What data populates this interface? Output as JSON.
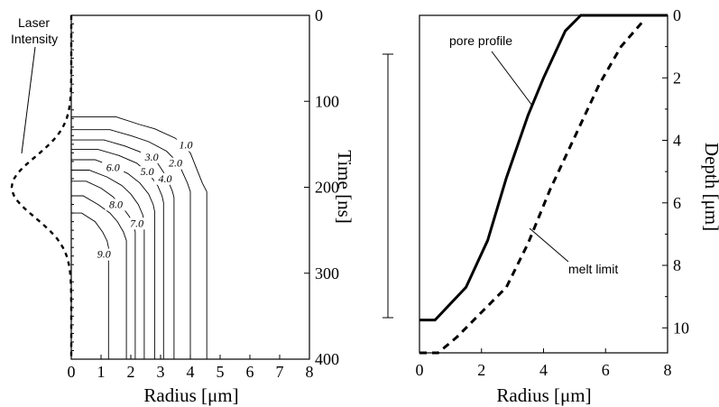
{
  "chart_data": [
    {
      "type": "contour",
      "xlabel": "Radius [μm]",
      "ylabel": "Time [ns]",
      "x_ticks": [
        "0",
        "1",
        "2",
        "3",
        "4",
        "5",
        "6",
        "7",
        "8"
      ],
      "y_ticks": [
        "0",
        "100",
        "200",
        "300",
        "400"
      ],
      "xlim": [
        0,
        8
      ],
      "ylim": [
        0,
        400
      ],
      "y_axis_side": "right",
      "y_inverted": true,
      "contours": [
        {
          "label": "1.0",
          "points": [
            [
              0,
              118
            ],
            [
              1.5,
              118
            ],
            [
              2.3,
              127
            ],
            [
              2.8,
              132
            ],
            [
              3.5,
              143
            ],
            [
              4.0,
              160
            ],
            [
              4.4,
              195
            ],
            [
              4.55,
              205
            ],
            [
              4.55,
              400
            ]
          ]
        },
        {
          "label": "2.0",
          "points": [
            [
              0,
              133
            ],
            [
              1.3,
              133
            ],
            [
              2.0,
              140
            ],
            [
              2.6,
              147
            ],
            [
              3.2,
              158
            ],
            [
              3.6,
              172
            ],
            [
              3.9,
              195
            ],
            [
              4.0,
              205
            ],
            [
              4.0,
              400
            ]
          ]
        },
        {
          "label": "3.0",
          "points": [
            [
              0,
              145
            ],
            [
              1.1,
              145
            ],
            [
              1.8,
              152
            ],
            [
              2.4,
              160
            ],
            [
              2.9,
              172
            ],
            [
              3.2,
              188
            ],
            [
              3.4,
              205
            ],
            [
              3.45,
              212
            ],
            [
              3.45,
              400
            ]
          ]
        },
        {
          "label": "4.0",
          "points": [
            [
              0,
              156
            ],
            [
              0.9,
              156
            ],
            [
              1.6,
              163
            ],
            [
              2.2,
              172
            ],
            [
              2.6,
              184
            ],
            [
              2.9,
              198
            ],
            [
              3.05,
              210
            ],
            [
              3.1,
              218
            ],
            [
              3.1,
              400
            ]
          ]
        },
        {
          "label": "5.0",
          "points": [
            [
              0,
              168
            ],
            [
              0.8,
              168
            ],
            [
              1.4,
              176
            ],
            [
              1.9,
              184
            ],
            [
              2.3,
              195
            ],
            [
              2.6,
              208
            ],
            [
              2.75,
              220
            ],
            [
              2.8,
              228
            ],
            [
              2.8,
              400
            ]
          ]
        },
        {
          "label": "6.0",
          "points": [
            [
              0,
              180
            ],
            [
              0.6,
              180
            ],
            [
              1.2,
              188
            ],
            [
              1.7,
              198
            ],
            [
              2.0,
              208
            ],
            [
              2.25,
              220
            ],
            [
              2.4,
              232
            ],
            [
              2.45,
              240
            ],
            [
              2.45,
              400
            ]
          ]
        },
        {
          "label": "7.0",
          "points": [
            [
              0,
              193
            ],
            [
              0.5,
              193
            ],
            [
              1.0,
              201
            ],
            [
              1.4,
              211
            ],
            [
              1.7,
              222
            ],
            [
              1.95,
              234
            ],
            [
              2.1,
              244
            ],
            [
              2.15,
              252
            ],
            [
              2.15,
              400
            ]
          ]
        },
        {
          "label": "8.0",
          "points": [
            [
              0,
              210
            ],
            [
              0.4,
              210
            ],
            [
              0.9,
              220
            ],
            [
              1.3,
              230
            ],
            [
              1.55,
              240
            ],
            [
              1.75,
              252
            ],
            [
              1.85,
              262
            ],
            [
              1.85,
              400
            ]
          ]
        },
        {
          "label": "9.0",
          "points": [
            [
              0,
              230
            ],
            [
              0.35,
              230
            ],
            [
              0.8,
              240
            ],
            [
              1.05,
              252
            ],
            [
              1.2,
              262
            ],
            [
              1.25,
              270
            ],
            [
              1.25,
              400
            ]
          ]
        }
      ],
      "annotations": [
        "Laser\nIntensity"
      ],
      "laser_intensity_profile": {
        "peak_time": 200,
        "width_ns": 50
      }
    },
    {
      "type": "line",
      "xlabel": "Radius [μm]",
      "ylabel": "Depth [μm]",
      "x_ticks": [
        "0",
        "2",
        "4",
        "6",
        "8"
      ],
      "y_ticks": [
        "0",
        "2",
        "4",
        "6",
        "8",
        "10"
      ],
      "xlim": [
        0,
        8
      ],
      "ylim": [
        0,
        10.8
      ],
      "y_axis_side": "right",
      "y_inverted": true,
      "series": [
        {
          "name": "pore profile",
          "style": "solid",
          "x": [
            0,
            0.5,
            1.5,
            2.2,
            2.8,
            3.5,
            4.0,
            4.7,
            5.2,
            6.0,
            8.0
          ],
          "y": [
            9.75,
            9.75,
            8.7,
            7.2,
            5.2,
            3.2,
            2.0,
            0.5,
            0.0,
            0.0,
            0.0
          ]
        },
        {
          "name": "melt limit",
          "style": "dashed",
          "x": [
            0,
            0.6,
            1.2,
            2.0,
            2.8,
            3.5,
            4.2,
            5.0,
            5.8,
            6.5,
            7.2
          ],
          "y": [
            10.8,
            10.8,
            10.3,
            9.5,
            8.7,
            7.3,
            5.6,
            3.9,
            2.2,
            1.0,
            0.2
          ]
        }
      ],
      "annotations": [
        "pore profile",
        "melt limit"
      ]
    }
  ]
}
